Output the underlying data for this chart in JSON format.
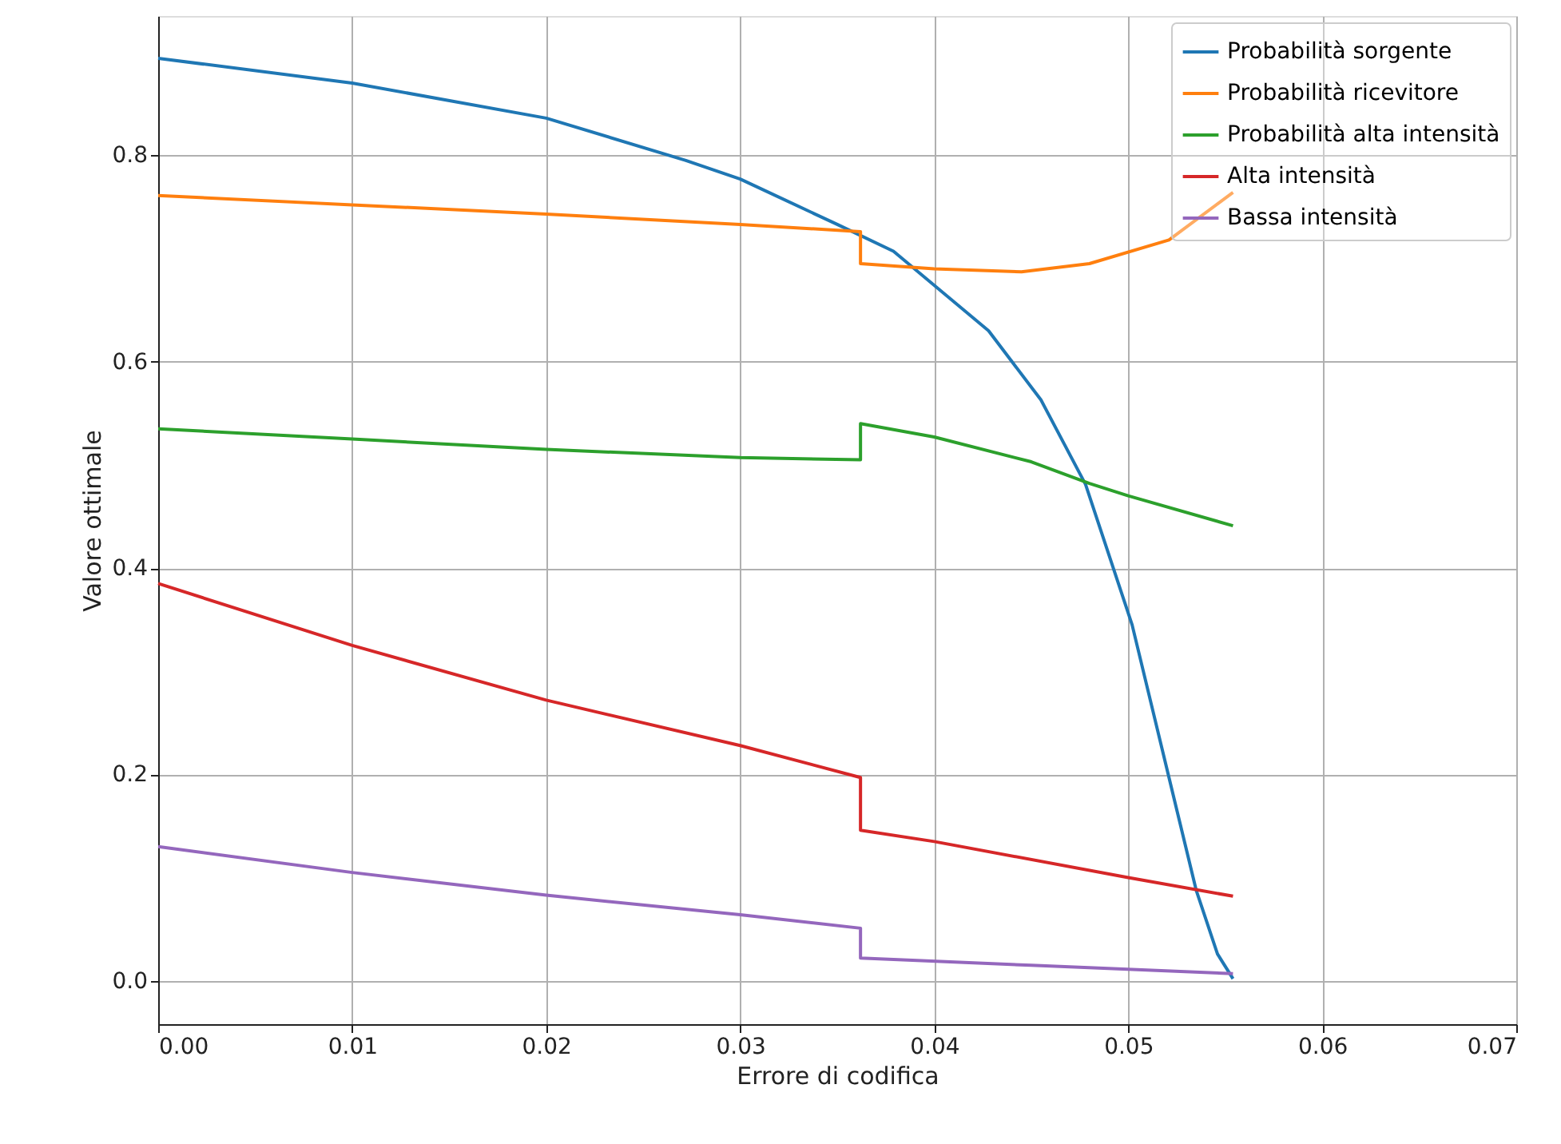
{
  "chart_data": {
    "type": "line",
    "xlabel": "Errore di codifica",
    "ylabel": "Valore ottimale",
    "xlim": [
      0,
      0.07
    ],
    "ylim": [
      -0.042,
      0.935
    ],
    "xticks": [
      {
        "value": 0,
        "label": "0.00"
      },
      {
        "value": 0.01,
        "label": "0.01"
      },
      {
        "value": 0.02,
        "label": "0.02"
      },
      {
        "value": 0.03,
        "label": "0.03"
      },
      {
        "value": 0.04,
        "label": "0.04"
      },
      {
        "value": 0.05,
        "label": "0.05"
      },
      {
        "value": 0.06,
        "label": "0.06"
      },
      {
        "value": 0.07,
        "label": "0.07"
      }
    ],
    "yticks": [
      {
        "value": 0,
        "label": "0.0"
      },
      {
        "value": 0.2,
        "label": "0.2"
      },
      {
        "value": 0.4,
        "label": "0.4"
      },
      {
        "value": 0.6,
        "label": "0.6"
      },
      {
        "value": 0.8,
        "label": "0.8"
      }
    ],
    "grid": true,
    "legend": "top right",
    "marker": "none",
    "line_style": "solid",
    "series": [
      {
        "name": "Probabilità sorgente",
        "color": "#1f77b4",
        "x": [
          0,
          0.01,
          0.02,
          0.0272,
          0.03,
          0.035,
          0.0379,
          0.0428,
          0.0455,
          0.0478,
          0.0502,
          0.0521,
          0.0535,
          0.0546,
          0.0554
        ],
        "values": [
          0.894,
          0.87,
          0.836,
          0.795,
          0.777,
          0.733,
          0.707,
          0.63,
          0.563,
          0.481,
          0.345,
          0.197,
          0.088,
          0.026,
          0.002
        ]
      },
      {
        "name": "Probabilità ricevitore",
        "color": "#ff7f0e",
        "x": [
          0,
          0.01,
          0.02,
          0.03,
          0.0362,
          0.0362,
          0.04,
          0.0445,
          0.048,
          0.0521,
          0.0554
        ],
        "values": [
          0.761,
          0.752,
          0.743,
          0.733,
          0.726,
          0.695,
          0.69,
          0.687,
          0.695,
          0.718,
          0.764
        ]
      },
      {
        "name": "Probabilità alta intensità",
        "color": "#2ca02c",
        "x": [
          0,
          0.01,
          0.02,
          0.03,
          0.0362,
          0.0362,
          0.04,
          0.045,
          0.048,
          0.05,
          0.0554
        ],
        "values": [
          0.535,
          0.525,
          0.515,
          0.507,
          0.505,
          0.54,
          0.527,
          0.503,
          0.482,
          0.47,
          0.441
        ]
      },
      {
        "name": "Alta intensità",
        "color": "#d62728",
        "x": [
          0,
          0.01,
          0.02,
          0.03,
          0.0362,
          0.0362,
          0.04,
          0.05,
          0.0554
        ],
        "values": [
          0.385,
          0.325,
          0.272,
          0.228,
          0.197,
          0.146,
          0.135,
          0.1,
          0.082
        ]
      },
      {
        "name": "Bassa intensità",
        "color": "#9467bd",
        "x": [
          0,
          0.01,
          0.02,
          0.03,
          0.0362,
          0.0362,
          0.045,
          0.0554
        ],
        "values": [
          0.13,
          0.105,
          0.083,
          0.064,
          0.051,
          0.022,
          0.015,
          0.007
        ]
      }
    ]
  }
}
